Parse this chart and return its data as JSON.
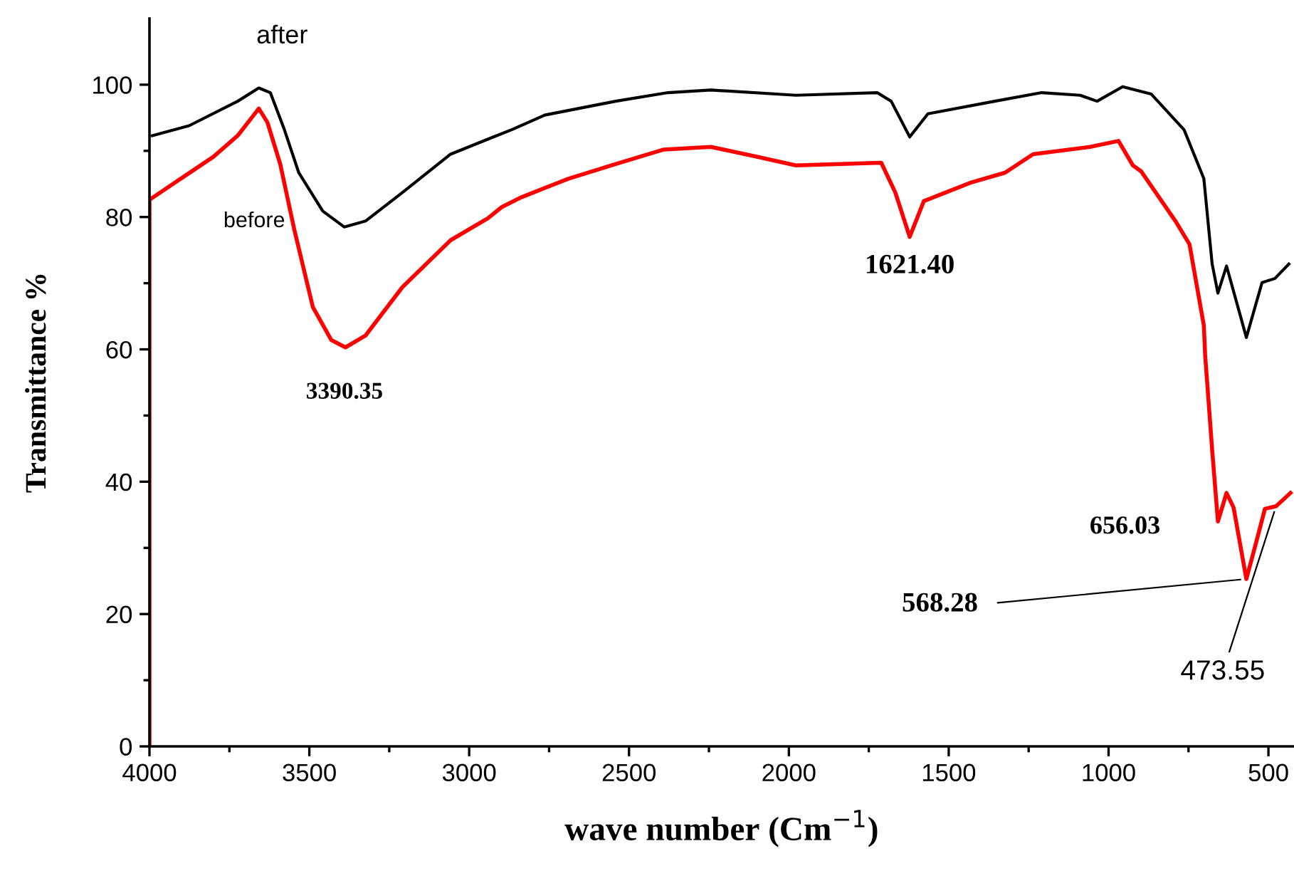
{
  "chart_data": {
    "type": "line",
    "xlabel": "wave number (Cm$^{−1}$)",
    "ylabel": "Transmittance %",
    "xlim": [
      4000,
      420
    ],
    "ylim": [
      0,
      110
    ],
    "xticks": [
      4000,
      {
        "value": 3750,
        "label": null
      },
      3500,
      {
        "value": 3250,
        "label": null
      },
      3000,
      {
        "value": 2750,
        "label": null
      },
      2500,
      {
        "value": 2250,
        "label": null
      },
      2000,
      {
        "value": 1750,
        "label": null
      },
      1500,
      {
        "value": 1250,
        "label": null
      },
      1000,
      {
        "value": 750,
        "label": null
      },
      500
    ],
    "yticks": [
      0,
      {
        "value": 10,
        "label": null
      },
      20,
      {
        "value": 30,
        "label": null
      },
      40,
      {
        "value": 50,
        "label": null
      },
      60,
      {
        "value": 70,
        "label": null
      },
      80,
      {
        "value": 90,
        "label": null
      },
      100
    ],
    "grid": false,
    "legend": false,
    "marker": "none",
    "line_style": "solid",
    "series": [
      {
        "name": "after",
        "color": "#000000",
        "x": [
          3991,
          3876,
          3724,
          3658,
          3622,
          3578,
          3533,
          3458,
          3391,
          3324,
          3209,
          3058,
          2924,
          2867,
          2764,
          2542,
          2378,
          2244,
          1978,
          1724,
          1680,
          1622,
          1565,
          1356,
          1209,
          1089,
          1036,
          956,
          867,
          764,
          702,
          676,
          658,
          631,
          569,
          520,
          480,
          436
        ],
        "values": [
          92.3,
          93.8,
          97.5,
          99.5,
          98.8,
          93.2,
          86.7,
          80.9,
          78.5,
          79.4,
          83.7,
          89.5,
          92.1,
          93.2,
          95.4,
          97.5,
          98.8,
          99.2,
          98.4,
          98.8,
          97.5,
          92.1,
          95.6,
          97.5,
          98.8,
          98.4,
          97.5,
          99.7,
          98.6,
          93.2,
          85.8,
          72.9,
          68.5,
          72.6,
          61.8,
          70.1,
          70.7,
          72.9
        ]
      },
      {
        "name": "before",
        "color": "#ff0000",
        "x": [
          4000,
          4000,
          3902,
          3800,
          3724,
          3658,
          3631,
          3591,
          3547,
          3489,
          3431,
          3387,
          3324,
          3209,
          3058,
          2942,
          2898,
          2836,
          2689,
          2542,
          2391,
          2244,
          2098,
          1978,
          1711,
          1667,
          1622,
          1578,
          1431,
          1324,
          1236,
          1058,
          969,
          924,
          898,
          791,
          747,
          702,
          698,
          676,
          658,
          631,
          609,
          569,
          533,
          511,
          476,
          431
        ],
        "values": [
          0,
          82.6,
          85.8,
          89.1,
          92.3,
          96.4,
          94.3,
          88.0,
          78.1,
          66.4,
          61.4,
          60.3,
          62.1,
          69.4,
          76.5,
          79.8,
          81.5,
          83.0,
          85.8,
          88.0,
          90.2,
          90.6,
          89.1,
          87.8,
          88.2,
          83.7,
          77.0,
          82.4,
          85.2,
          86.7,
          89.5,
          90.6,
          91.5,
          87.8,
          86.9,
          79.4,
          75.9,
          63.6,
          59.2,
          44.8,
          34.0,
          38.3,
          36.1,
          25.3,
          31.8,
          35.9,
          36.3,
          38.3
        ]
      }
    ],
    "annotations": [
      {
        "text": "3390.35",
        "x": 3390,
        "y": 60.3
      },
      {
        "text": "1621.40",
        "x": 1622,
        "y": 77.0
      },
      {
        "text": "656.03",
        "x": 658,
        "y": 34.0
      },
      {
        "text": "568.28",
        "x": 569,
        "y": 25.3
      },
      {
        "text": "473.55",
        "x": 476,
        "y": 36.3
      }
    ]
  }
}
